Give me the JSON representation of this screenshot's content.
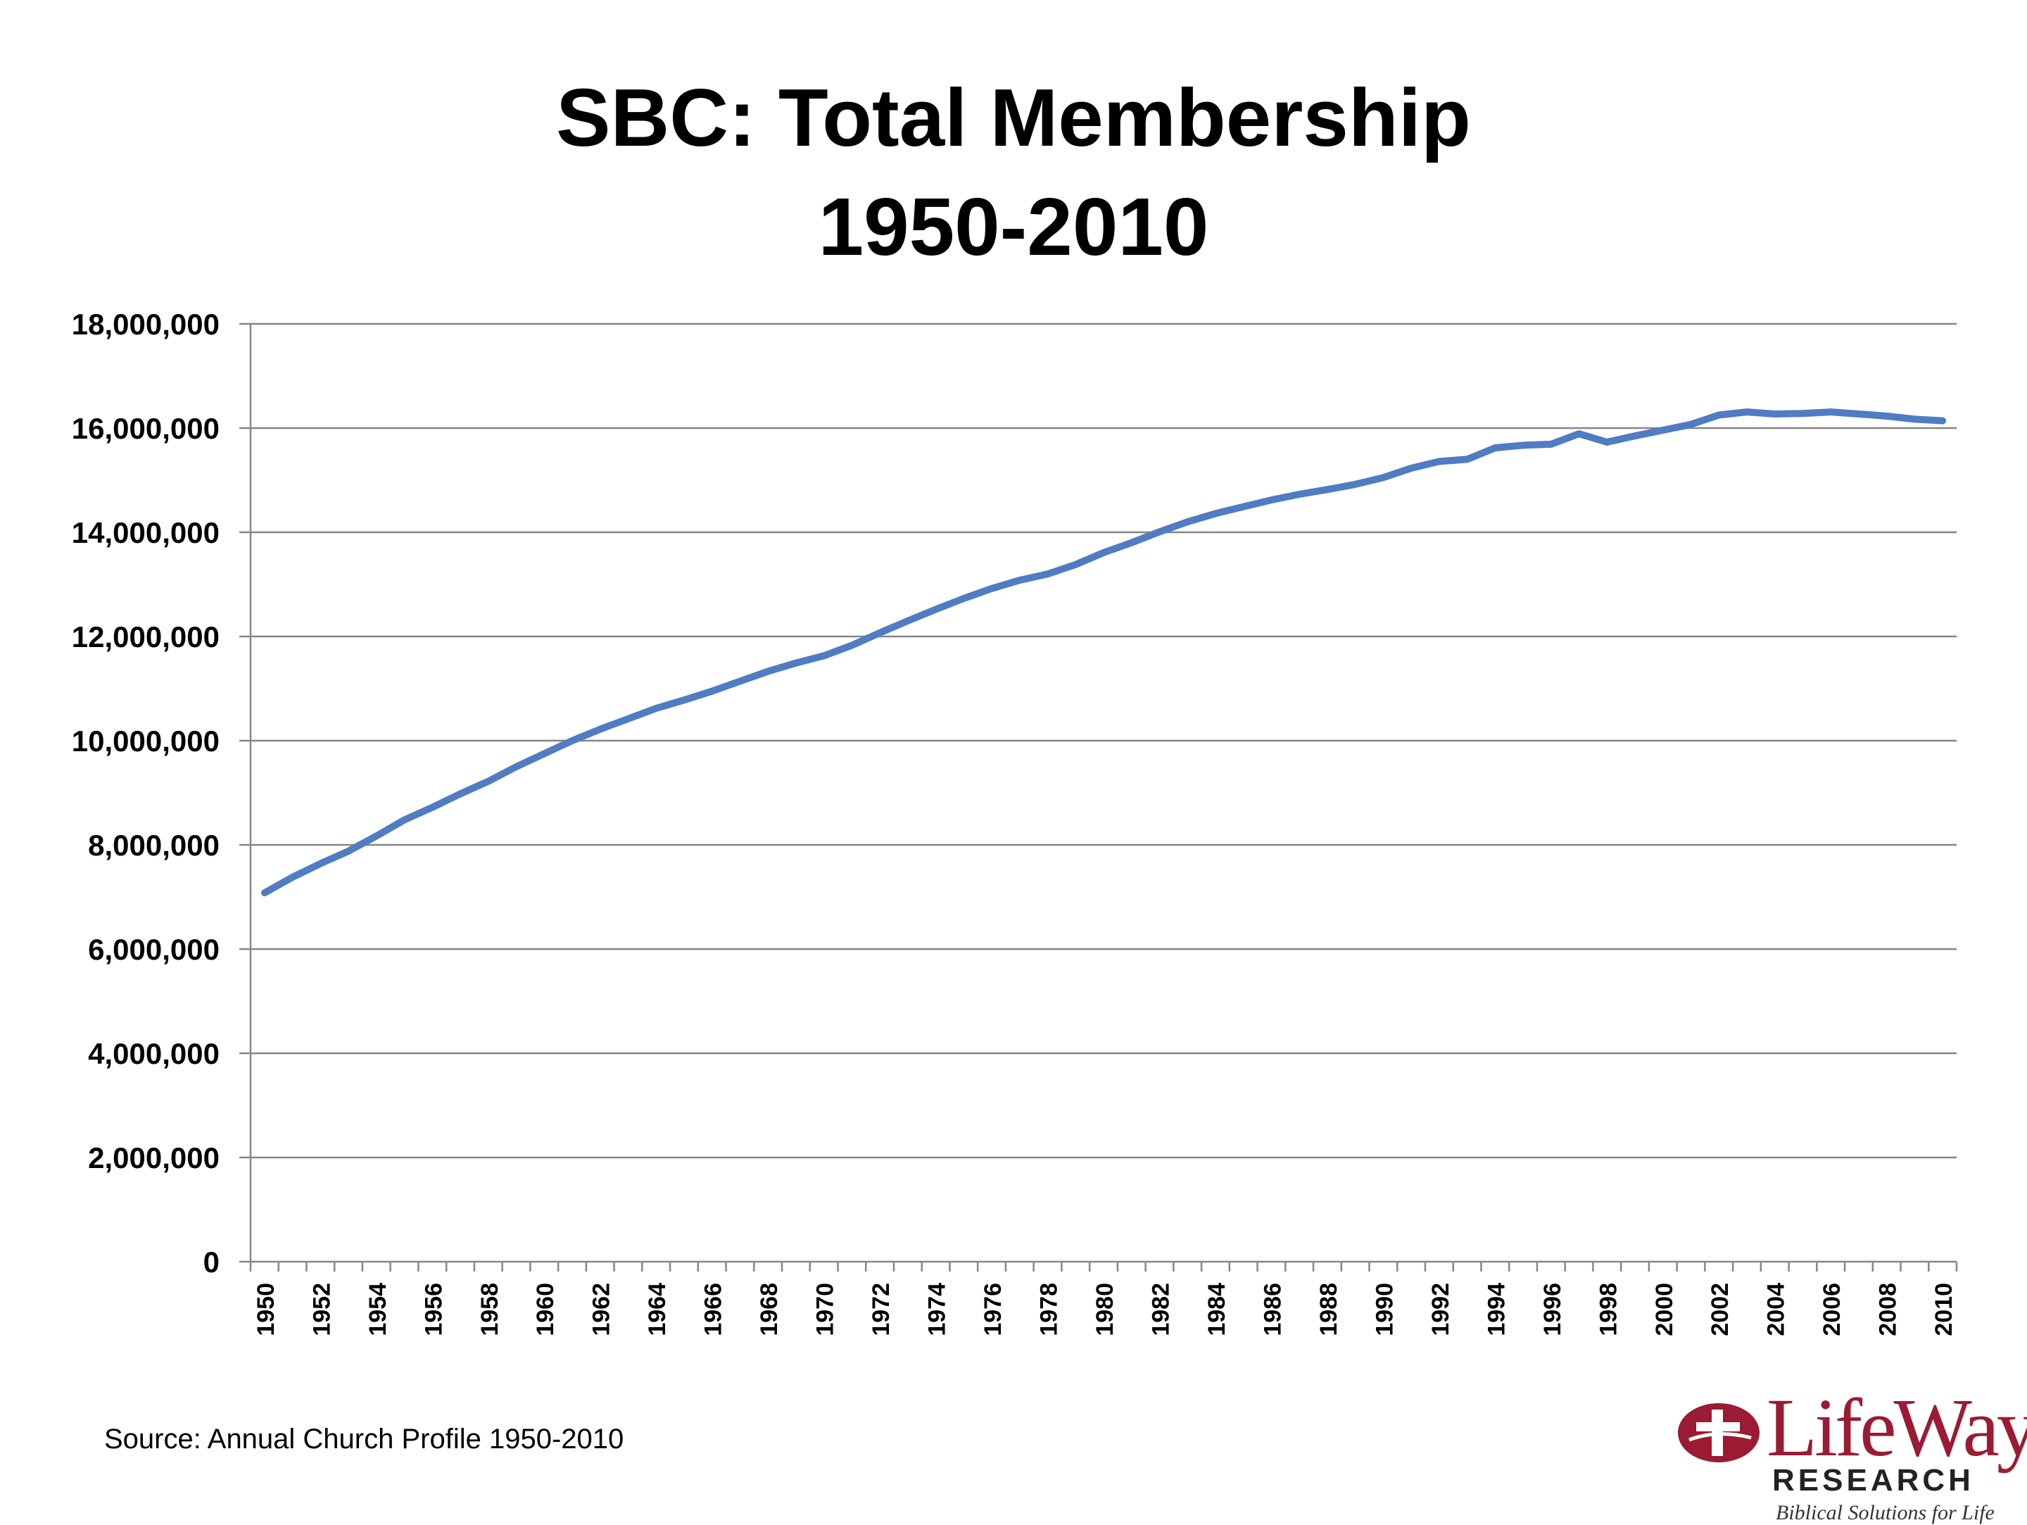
{
  "chart_data": {
    "type": "line",
    "title": [
      "SBC: Total Membership",
      "1950-2010"
    ],
    "xlabel": "",
    "ylabel": "",
    "ylim": [
      0,
      18000000
    ],
    "yticks": [
      "0",
      "2,000,000",
      "4,000,000",
      "6,000,000",
      "8,000,000",
      "10,000,000",
      "12,000,000",
      "14,000,000",
      "16,000,000",
      "18,000,000"
    ],
    "xtick_labels": [
      "1950",
      "1952",
      "1954",
      "1956",
      "1958",
      "1960",
      "1962",
      "1964",
      "1966",
      "1968",
      "1970",
      "1972",
      "1974",
      "1976",
      "1978",
      "1980",
      "1982",
      "1984",
      "1986",
      "1988",
      "1990",
      "1992",
      "1994",
      "1996",
      "1998",
      "2000",
      "2002",
      "2004",
      "2006",
      "2008",
      "2010"
    ],
    "grid": true,
    "legend": "none",
    "series_color": "#4f7cc3",
    "series": [
      {
        "x": [
          1950,
          1951,
          1952,
          1953,
          1954,
          1955,
          1956,
          1957,
          1958,
          1959,
          1960,
          1961,
          1962,
          1963,
          1964,
          1965,
          1966,
          1967,
          1968,
          1969,
          1970,
          1971,
          1972,
          1973,
          1974,
          1975,
          1976,
          1977,
          1978,
          1979,
          1980,
          1981,
          1982,
          1983,
          1984,
          1985,
          1986,
          1987,
          1988,
          1989,
          1990,
          1991,
          1992,
          1993,
          1994,
          1995,
          1996,
          1997,
          1998,
          1999,
          2000,
          2001,
          2002,
          2003,
          2004,
          2005,
          2006,
          2007,
          2008,
          2009,
          2010
        ],
        "values": [
          7080000,
          7380000,
          7640000,
          7880000,
          8170000,
          8480000,
          8720000,
          8980000,
          9220000,
          9500000,
          9750000,
          10000000,
          10220000,
          10420000,
          10620000,
          10780000,
          10950000,
          11140000,
          11330000,
          11490000,
          11630000,
          11830000,
          12070000,
          12300000,
          12520000,
          12730000,
          12920000,
          13080000,
          13200000,
          13380000,
          13610000,
          13800000,
          14010000,
          14200000,
          14360000,
          14490000,
          14620000,
          14730000,
          14820000,
          14920000,
          15050000,
          15230000,
          15360000,
          15400000,
          15620000,
          15670000,
          15690000,
          15890000,
          15730000,
          15850000,
          15960000,
          16070000,
          16250000,
          16310000,
          16270000,
          16280000,
          16310000,
          16270000,
          16230000,
          16170000,
          16140000
        ]
      }
    ]
  },
  "source": "Source: Annual Church Profile 1950-2010",
  "logo": {
    "word": "LifeWay",
    "sub": "RESEARCH",
    "tagline": "Biblical Solutions for Life",
    "color": "#9a1b33"
  }
}
